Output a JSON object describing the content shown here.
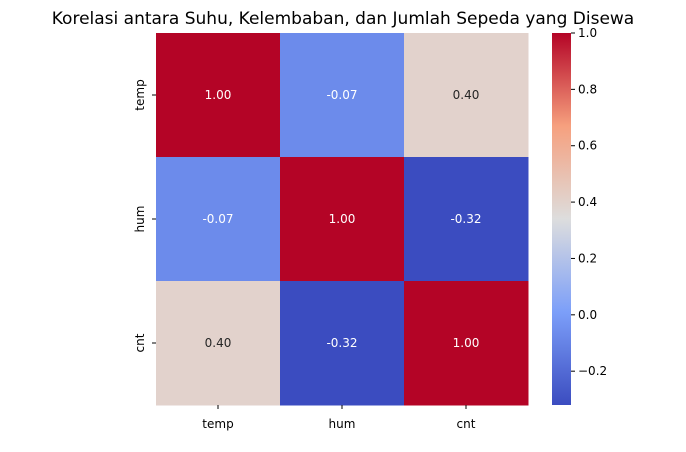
{
  "chart_data": {
    "type": "heatmap",
    "title": "Korelasi antara Suhu, Kelembaban, dan Jumlah Sepeda yang Disewa",
    "x_labels": [
      "temp",
      "hum",
      "cnt"
    ],
    "y_labels": [
      "temp",
      "hum",
      "cnt"
    ],
    "values": [
      [
        1.0,
        -0.07,
        0.4
      ],
      [
        -0.07,
        1.0,
        -0.32
      ],
      [
        0.4,
        -0.32,
        1.0
      ]
    ],
    "cell_labels": [
      [
        "1.00",
        "-0.07",
        "0.40"
      ],
      [
        "-0.07",
        "1.00",
        "-0.32"
      ],
      [
        "0.40",
        "-0.32",
        "1.00"
      ]
    ],
    "colormap": "coolwarm",
    "vmin": -0.32,
    "vmax": 1.0,
    "colorbar": {
      "ticks": [
        -0.2,
        0.0,
        0.2,
        0.4,
        0.6,
        0.8,
        1.0
      ],
      "tick_labels": [
        "−0.2",
        "0.0",
        "0.2",
        "0.4",
        "0.6",
        "0.8",
        "1.0"
      ]
    },
    "annotated": true
  }
}
